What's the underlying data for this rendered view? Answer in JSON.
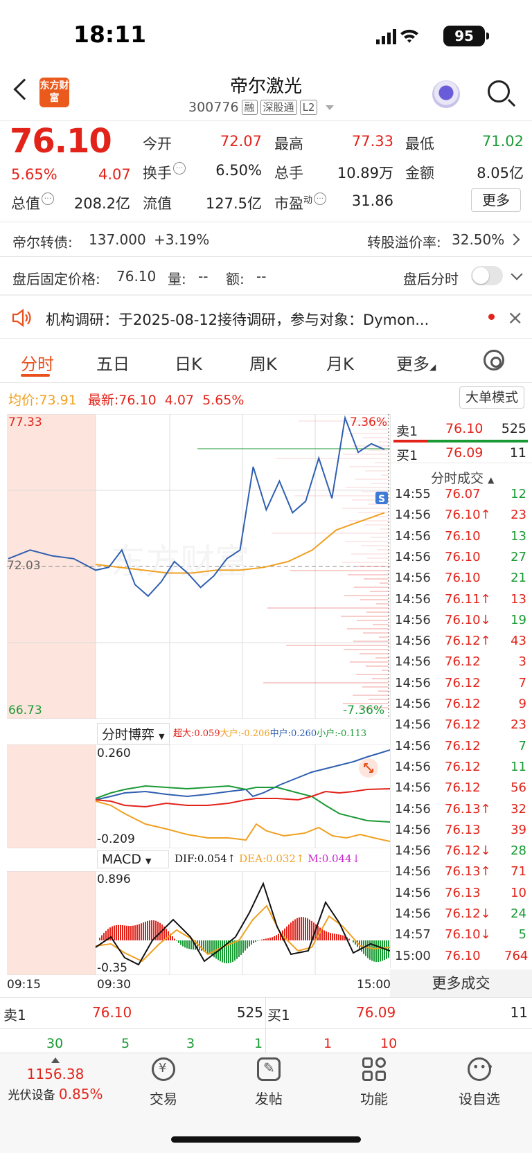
{
  "status_bar": {
    "time": "18:11",
    "battery": "95"
  },
  "header": {
    "logo_text": "东方财富",
    "stock_name": "帝尔激光",
    "stock_code": "300776",
    "tags": [
      "融",
      "深股通",
      "L2"
    ]
  },
  "quote": {
    "price": "76.10",
    "change_pct": "5.65%",
    "change": "4.07",
    "open_label": "今开",
    "open": "72.07",
    "high_label": "最高",
    "high": "77.33",
    "low_label": "最低",
    "low": "71.02",
    "turnover_label": "换手",
    "turnover": "6.50%",
    "volume_label": "总手",
    "volume": "10.89万",
    "amount_label": "金额",
    "amount": "8.05亿",
    "mktcap_label": "总值",
    "mktcap": "208.2亿",
    "float_label": "流值",
    "float": "127.5亿",
    "pe_label": "市盈",
    "pe_sup": "动",
    "pe": "31.86",
    "more_btn": "更多"
  },
  "bond_row": {
    "label": "帝尔转债:",
    "price": "137.000",
    "change": "+3.19%",
    "premium_label": "转股溢价率:",
    "premium": "32.50%"
  },
  "after_hours": {
    "label": "盘后固定价格:",
    "price": "76.10",
    "vol_label": "量:",
    "vol": "--",
    "amt_label": "额:",
    "amt": "--",
    "toggle_label": "盘后分时"
  },
  "notice": {
    "text": "机构调研：于2025-08-12接待调研，参与对象：Dymon..."
  },
  "tabs": [
    {
      "label": "分时"
    },
    {
      "label": "五日"
    },
    {
      "label": "日K"
    },
    {
      "label": "周K"
    },
    {
      "label": "月K"
    },
    {
      "label": "更多"
    }
  ],
  "chart_header": {
    "avg_label": "均价:",
    "avg": "73.91",
    "latest_label": "最新:",
    "latest": "76.10",
    "change": "4.07",
    "pct": "5.65%",
    "big_order_btn": "大单模式"
  },
  "chart_data": [
    {
      "type": "line",
      "title": "",
      "x_ticks": [
        "09:15",
        "09:30",
        "15:00"
      ],
      "ylim": [
        66.73,
        77.33
      ],
      "y_labels": {
        "top": "77.33",
        "mid": "72.03",
        "bottom": "66.73",
        "top_pct": "7.36%",
        "bottom_pct": "-7.36%"
      },
      "series": [
        {
          "name": "",
          "color": "#2f5fb0",
          "values": [
            72.3,
            72.6,
            72.4,
            72.3,
            71.9,
            72.0,
            72.6,
            71.4,
            71.0,
            71.5,
            72.2,
            71.8,
            71.3,
            71.7,
            72.3,
            72.6,
            75.5,
            74.0,
            75.0,
            73.9,
            74.3,
            75.8,
            74.4,
            77.2,
            76.0,
            76.3,
            76.1
          ]
        },
        {
          "name": "",
          "color": "#f0a020",
          "values": [
            72.1,
            72.0,
            71.9,
            71.8,
            71.8,
            71.9,
            71.9,
            72.0,
            72.2,
            72.6,
            73.3,
            73.6,
            73.9
          ]
        }
      ]
    },
    {
      "type": "line",
      "title": "分时博弈",
      "y_labels": {
        "top": "0.260",
        "bottom": "-0.209"
      },
      "series": [
        {
          "name": "超大:0.059",
          "color": "#e2231a"
        },
        {
          "name": "大户:-0.206",
          "color": "#f0a020"
        },
        {
          "name": "中户:0.260",
          "color": "#2f5fb0"
        },
        {
          "name": "小户:-0.113",
          "color": "#1a9a35"
        }
      ]
    },
    {
      "type": "bar",
      "title": "MACD",
      "y_labels": {
        "top": "0.896",
        "bottom": "-0.35"
      },
      "series": [
        {
          "name": "DIF:0.054",
          "color": "#111111"
        },
        {
          "name": "DEA:0.032",
          "color": "#f0a020"
        },
        {
          "name": "M:0.044",
          "color": "#cc22cc"
        }
      ]
    }
  ],
  "order_book": {
    "sell_label": "卖1",
    "sell_price": "76.10",
    "sell_vol": "525",
    "buy_label": "买1",
    "buy_price": "76.09",
    "buy_vol": "11",
    "trades_title": "分时成交"
  },
  "trades": [
    {
      "time": "14:55",
      "price": "76.07",
      "vol": "12",
      "pc": "red",
      "vc": "green"
    },
    {
      "time": "14:56",
      "price": "76.10↑",
      "vol": "23",
      "pc": "red",
      "vc": "red"
    },
    {
      "time": "14:56",
      "price": "76.10",
      "vol": "13",
      "pc": "red",
      "vc": "green"
    },
    {
      "time": "14:56",
      "price": "76.10",
      "vol": "27",
      "pc": "red",
      "vc": "green"
    },
    {
      "time": "14:56",
      "price": "76.10",
      "vol": "21",
      "pc": "red",
      "vc": "green"
    },
    {
      "time": "14:56",
      "price": "76.11↑",
      "vol": "13",
      "pc": "red",
      "vc": "red"
    },
    {
      "time": "14:56",
      "price": "76.10↓",
      "vol": "19",
      "pc": "red",
      "vc": "green"
    },
    {
      "time": "14:56",
      "price": "76.12↑",
      "vol": "43",
      "pc": "red",
      "vc": "red"
    },
    {
      "time": "14:56",
      "price": "76.12",
      "vol": "3",
      "pc": "red",
      "vc": "red"
    },
    {
      "time": "14:56",
      "price": "76.12",
      "vol": "7",
      "pc": "red",
      "vc": "red"
    },
    {
      "time": "14:56",
      "price": "76.12",
      "vol": "9",
      "pc": "red",
      "vc": "red"
    },
    {
      "time": "14:56",
      "price": "76.12",
      "vol": "23",
      "pc": "red",
      "vc": "red"
    },
    {
      "time": "14:56",
      "price": "76.12",
      "vol": "7",
      "pc": "red",
      "vc": "green"
    },
    {
      "time": "14:56",
      "price": "76.12",
      "vol": "11",
      "pc": "red",
      "vc": "green"
    },
    {
      "time": "14:56",
      "price": "76.12",
      "vol": "56",
      "pc": "red",
      "vc": "red"
    },
    {
      "time": "14:56",
      "price": "76.13↑",
      "vol": "32",
      "pc": "red",
      "vc": "red"
    },
    {
      "time": "14:56",
      "price": "76.13",
      "vol": "39",
      "pc": "red",
      "vc": "red"
    },
    {
      "time": "14:56",
      "price": "76.12↓",
      "vol": "28",
      "pc": "red",
      "vc": "green"
    },
    {
      "time": "14:56",
      "price": "76.13↑",
      "vol": "71",
      "pc": "red",
      "vc": "red"
    },
    {
      "time": "14:56",
      "price": "76.13",
      "vol": "10",
      "pc": "red",
      "vc": "red"
    },
    {
      "time": "14:56",
      "price": "76.12↓",
      "vol": "24",
      "pc": "red",
      "vc": "green"
    },
    {
      "time": "14:57",
      "price": "76.10↓",
      "vol": "5",
      "pc": "red",
      "vc": "green"
    },
    {
      "time": "15:00",
      "price": "76.10",
      "vol": "764",
      "pc": "red",
      "vc": "red"
    }
  ],
  "more_trades": "更多成交",
  "bottom_quotes": {
    "sell_label": "卖1",
    "sell_price": "76.10",
    "sell_vol": "525",
    "buy_label": "买1",
    "buy_price": "76.09",
    "buy_vol": "11",
    "small": [
      "30",
      "5",
      "3",
      "1",
      "1",
      "10"
    ]
  },
  "bottom_nav": {
    "index_value": "1156.38",
    "index_name": "光伏设备",
    "index_pct": "0.85%",
    "items": [
      {
        "label": "交易"
      },
      {
        "label": "发帖"
      },
      {
        "label": "功能"
      },
      {
        "label": "设自选"
      }
    ]
  }
}
